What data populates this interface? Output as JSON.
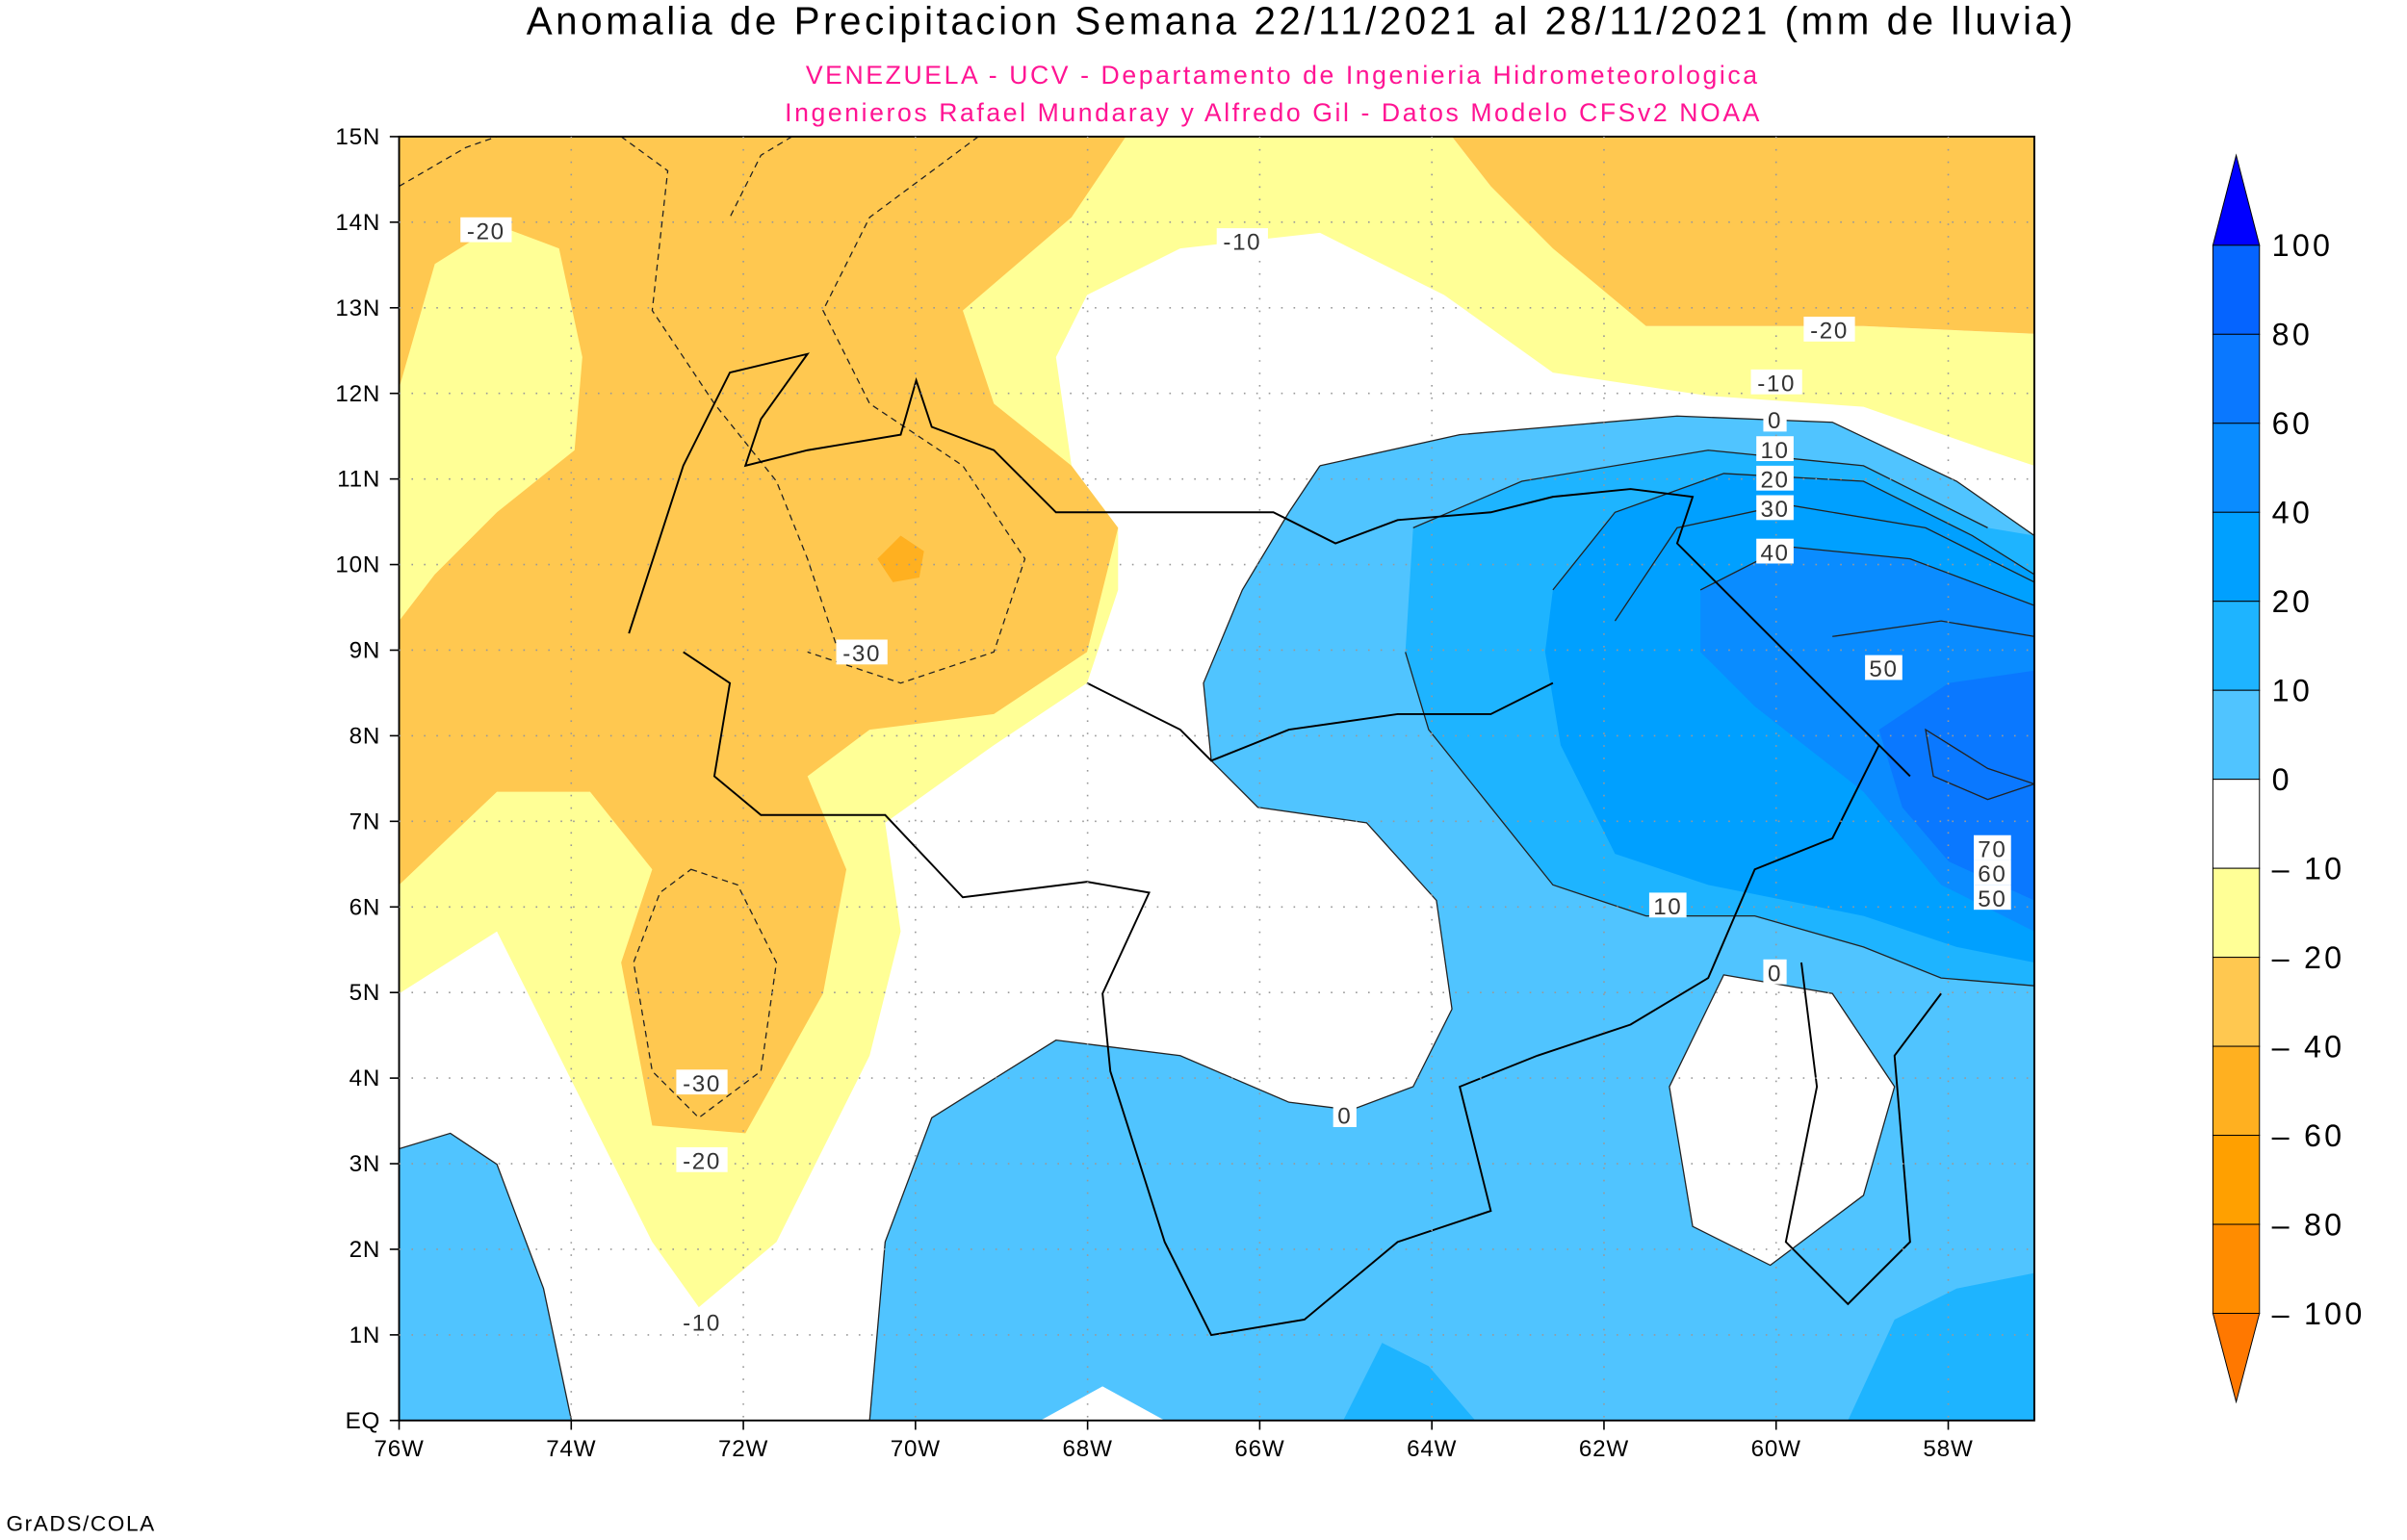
{
  "title": "Anomalia de Precipitacion Semana 22/11/2021 al 28/11/2021 (mm de lluvia)",
  "subtitle_1": "VENEZUELA - UCV - Departamento de Ingenieria Hidrometeorologica",
  "subtitle_2": "Ingenieros Rafael Mundaray y Alfredo Gil - Datos Modelo CFSv2 NOAA",
  "footer": "GrADS/COLA",
  "map": {
    "region": "Venezuela",
    "lon_range": [
      -76,
      -57
    ],
    "lat_range": [
      0,
      15
    ],
    "lat_labels": [
      "15N",
      "14N",
      "13N",
      "12N",
      "11N",
      "10N",
      "9N",
      "8N",
      "7N",
      "6N",
      "5N",
      "4N",
      "3N",
      "2N",
      "1N",
      "EQ"
    ],
    "lon_labels": [
      "76W",
      "74W",
      "72W",
      "70W",
      "68W",
      "66W",
      "64W",
      "62W",
      "60W",
      "58W"
    ],
    "grid": "dotted",
    "contour_labels": [
      "-20",
      "-10",
      "-20",
      "-10",
      "0",
      "10",
      "20",
      "30",
      "40",
      "50",
      "-30",
      "70",
      "60",
      "50",
      "10",
      "0",
      "0",
      "-30",
      "-20",
      "-10"
    ]
  },
  "colorbar": {
    "labels": [
      "100",
      "80",
      "60",
      "40",
      "20",
      "10",
      "0",
      "-10",
      "-20",
      "-40",
      "-60",
      "-80",
      "-100"
    ],
    "colors": [
      "#0000ff",
      "#0564ff",
      "#0a78ff",
      "#0a8cff",
      "#00a0ff",
      "#1eb4ff",
      "#50c4ff",
      "#ffffff",
      "#ffff96",
      "#ffc850",
      "#ffb020",
      "#ffa000",
      "#ff8c00",
      "#ff7800"
    ]
  }
}
